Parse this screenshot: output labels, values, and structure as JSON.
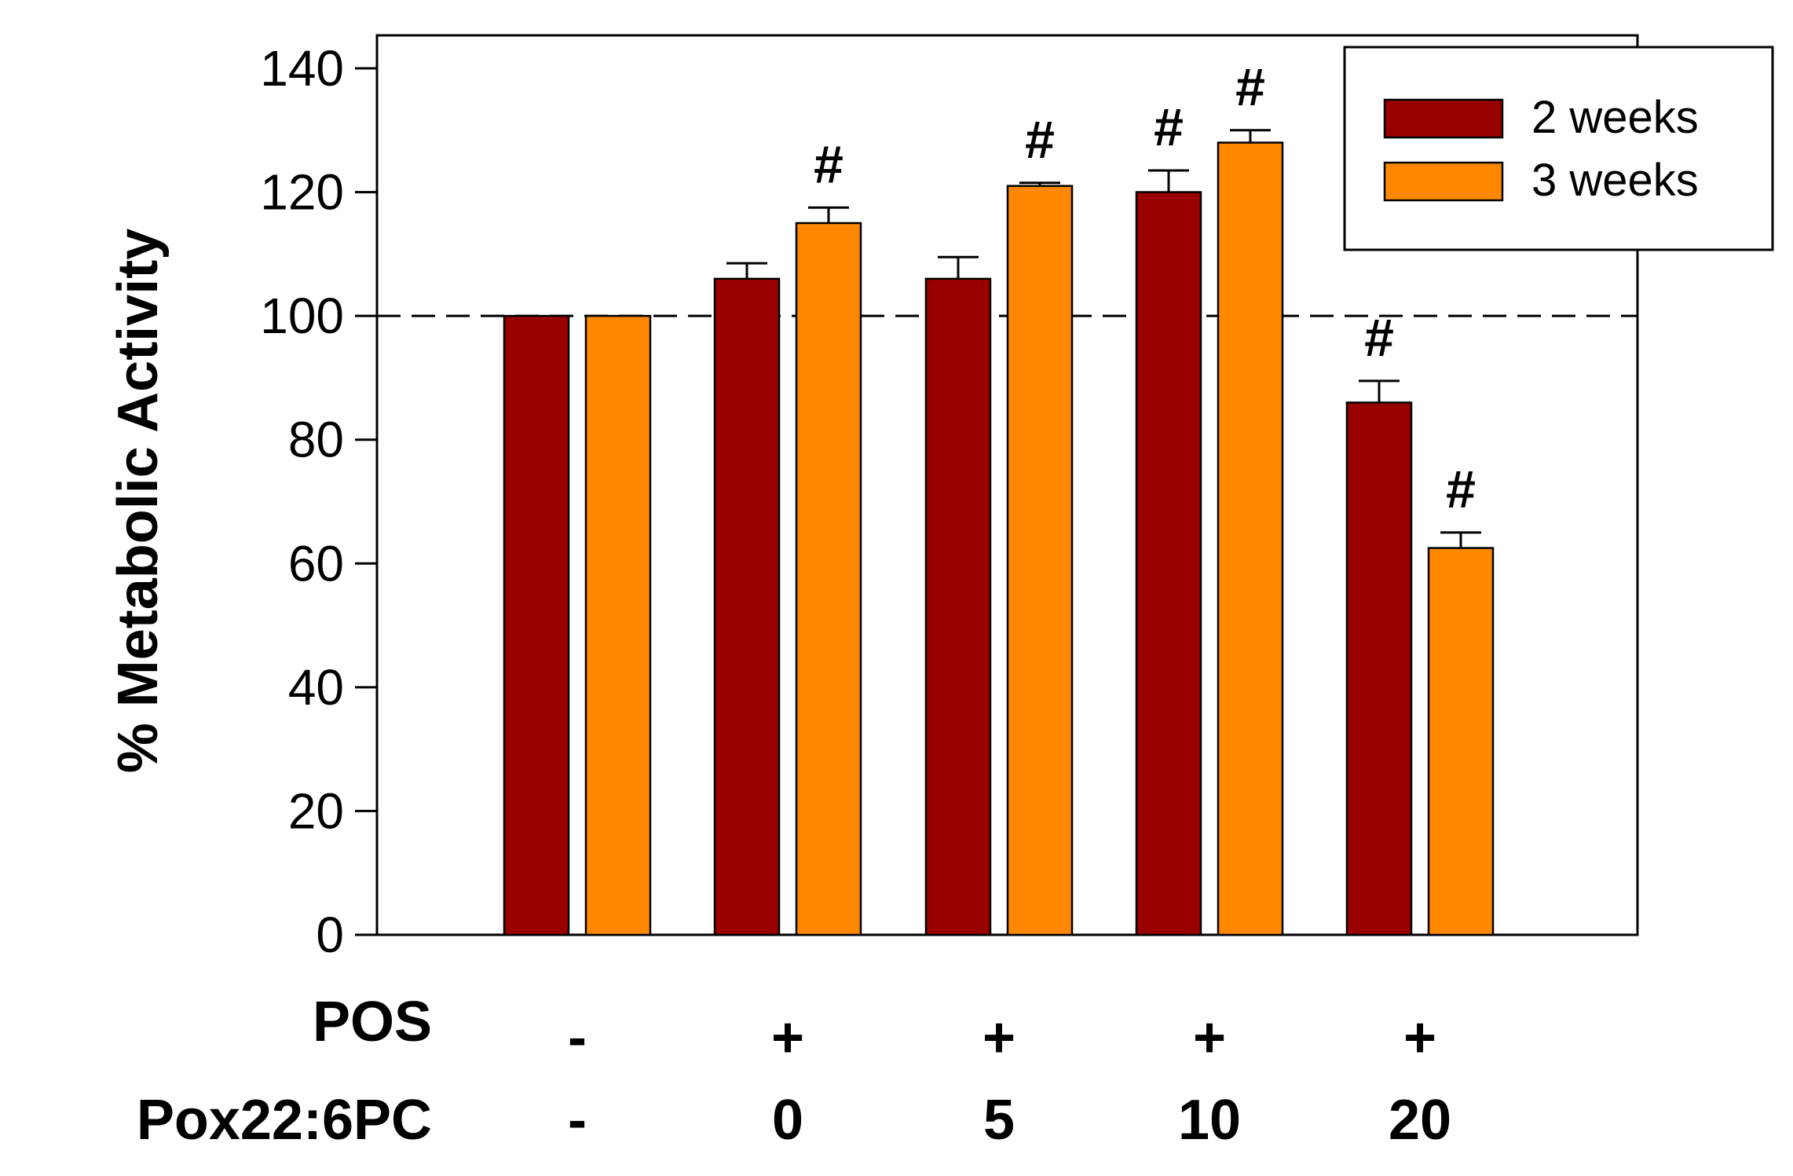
{
  "chart_data": {
    "type": "bar",
    "ylabel": "% Metabolic Activity",
    "ylim": [
      0,
      140
    ],
    "yticks": [
      "0",
      "20",
      "40",
      "60",
      "80",
      "100",
      "120",
      "140"
    ],
    "reference_line": 100,
    "legend_position": "top-right",
    "categories": [
      {
        "pos": "-",
        "pox": "-"
      },
      {
        "pos": "+",
        "pox": "0"
      },
      {
        "pos": "+",
        "pox": "5"
      },
      {
        "pos": "+",
        "pox": "10"
      },
      {
        "pos": "+",
        "pox": "20"
      }
    ],
    "row_labels": {
      "pos": "POS",
      "pox": "Pox22:6PC"
    },
    "series": [
      {
        "name": "2 weeks",
        "color": "#990000",
        "values": [
          100,
          106,
          106,
          120,
          86
        ],
        "errors": [
          0,
          2.5,
          3.5,
          3.5,
          3.5
        ],
        "significance": [
          "",
          "",
          "",
          "#",
          "#"
        ]
      },
      {
        "name": "3 weeks",
        "color": "#FF8800",
        "values": [
          100,
          115,
          121,
          128,
          62.5
        ],
        "errors": [
          0,
          2.5,
          0.5,
          2,
          2.5
        ],
        "significance": [
          "",
          "#",
          "#",
          "#",
          "#"
        ]
      }
    ]
  }
}
